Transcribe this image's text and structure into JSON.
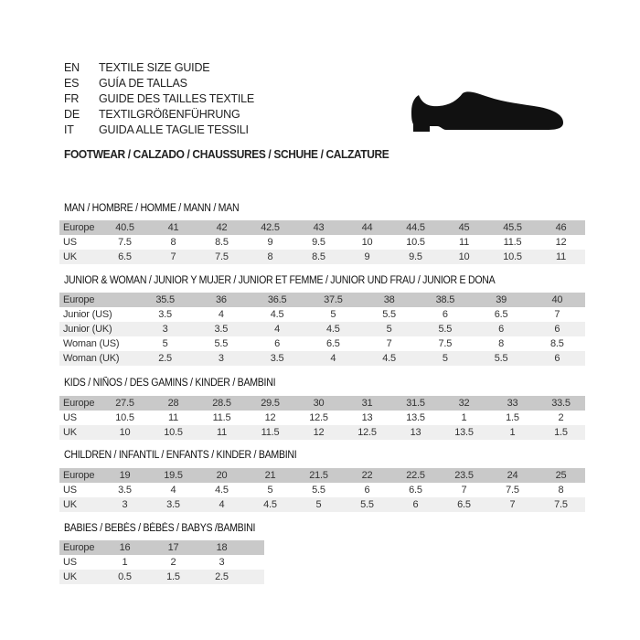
{
  "header": {
    "languages": [
      {
        "code": "EN",
        "text": "TEXTILE SIZE GUIDE"
      },
      {
        "code": "ES",
        "text": "GUÍA DE TALLAS"
      },
      {
        "code": "FR",
        "text": "GUIDE DES TAILLES TEXTILE"
      },
      {
        "code": "DE",
        "text": "TEXTILGRÖßENFÜHRUNG"
      },
      {
        "code": "IT",
        "text": "GUIDA ALLE TAGLIE TESSILI"
      }
    ],
    "footwear": "FOOTWEAR / CALZADO / CHAUSSURES / SCHUHE / CALZATURE",
    "image_icon": "shoe-silhouette"
  },
  "colors": {
    "header_row": "#c9c9c9",
    "alt_row": "#efefef"
  },
  "sections": [
    {
      "title": "MAN / HOMBRE / HOMME / MANN / MAN",
      "rows": [
        {
          "label": "Europe",
          "values": [
            "40.5",
            "41",
            "42",
            "42.5",
            "43",
            "44",
            "44.5",
            "45",
            "45.5",
            "46"
          ]
        },
        {
          "label": "US",
          "values": [
            "7.5",
            "8",
            "8.5",
            "9",
            "9.5",
            "10",
            "10.5",
            "11",
            "11.5",
            "12"
          ]
        },
        {
          "label": "UK",
          "values": [
            "6.5",
            "7",
            "7.5",
            "8",
            "8.5",
            "9",
            "9.5",
            "10",
            "10.5",
            "11"
          ]
        }
      ]
    },
    {
      "title": "JUNIOR & WOMAN / JUNIOR Y MUJER / JUNIOR ET FEMME / JUNIOR UND FRAU / JUNIOR E DONA",
      "rows": [
        {
          "label": "Europe",
          "values": [
            "35.5",
            "36",
            "36.5",
            "37.5",
            "38",
            "38.5",
            "39",
            "40"
          ]
        },
        {
          "label": "Junior (US)",
          "values": [
            "3.5",
            "4",
            "4.5",
            "5",
            "5.5",
            "6",
            "6.5",
            "7"
          ]
        },
        {
          "label": "Junior (UK)",
          "values": [
            "3",
            "3.5",
            "4",
            "4.5",
            "5",
            "5.5",
            "6",
            "6"
          ]
        },
        {
          "label": "Woman (US)",
          "values": [
            "5",
            "5.5",
            "6",
            "6.5",
            "7",
            "7.5",
            "8",
            "8.5"
          ]
        },
        {
          "label": "Woman (UK)",
          "values": [
            "2.5",
            "3",
            "3.5",
            "4",
            "4.5",
            "5",
            "5.5",
            "6"
          ]
        }
      ]
    },
    {
      "title": "KIDS / NIÑOS / DES GAMINS / KINDER / BAMBINI",
      "rows": [
        {
          "label": "Europe",
          "values": [
            "27.5",
            "28",
            "28.5",
            "29.5",
            "30",
            "31",
            "31.5",
            "32",
            "33",
            "33.5"
          ]
        },
        {
          "label": "US",
          "values": [
            "10.5",
            "11",
            "11.5",
            "12",
            "12.5",
            "13",
            "13.5",
            "1",
            "1.5",
            "2"
          ]
        },
        {
          "label": "UK",
          "values": [
            "10",
            "10.5",
            "11",
            "11.5",
            "12",
            "12.5",
            "13",
            "13.5",
            "1",
            "1.5"
          ]
        }
      ]
    },
    {
      "title": "CHILDREN / INFANTIL / ENFANTS / KINDER / BAMBINI",
      "rows": [
        {
          "label": "Europe",
          "values": [
            "19",
            "19.5",
            "20",
            "21",
            "21.5",
            "22",
            "22.5",
            "23.5",
            "24",
            "25"
          ]
        },
        {
          "label": "US",
          "values": [
            "3.5",
            "4",
            "4.5",
            "5",
            "5.5",
            "6",
            "6.5",
            "7",
            "7.5",
            "8"
          ]
        },
        {
          "label": "UK",
          "values": [
            "3",
            "3.5",
            "4",
            "4.5",
            "5",
            "5.5",
            "6",
            "6.5",
            "7",
            "7.5"
          ]
        }
      ]
    },
    {
      "title": "BABIES  / BEBÉS / BÉBÉS / BABYS /BAMBINI",
      "rows": [
        {
          "label": "Europe",
          "values": [
            "16",
            "17",
            "18"
          ]
        },
        {
          "label": "US",
          "values": [
            "1",
            "2",
            "3"
          ]
        },
        {
          "label": "UK",
          "values": [
            "0.5",
            "1.5",
            "2.5"
          ]
        }
      ]
    }
  ]
}
